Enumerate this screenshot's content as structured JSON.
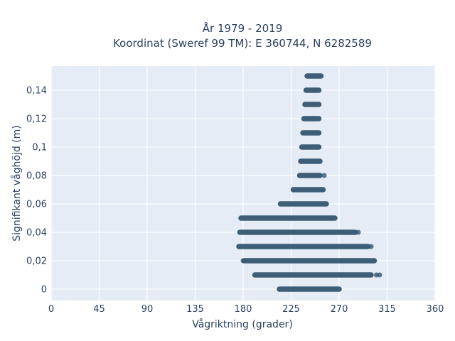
{
  "chart_data": {
    "type": "scatter",
    "title_line1": "År 1979 - 2019",
    "title_line2": "Koordinat (Sweref 99 TM): E 360744, N 6282589",
    "xlabel": "Vågriktning (grader)",
    "ylabel": "Signifikant våghöjd (m)",
    "xlim": [
      0,
      360
    ],
    "ylim": [
      -0.008,
      0.157
    ],
    "xticks": [
      0,
      45,
      90,
      135,
      180,
      225,
      270,
      315,
      360
    ],
    "xtick_labels": [
      "0",
      "45",
      "90",
      "135",
      "180",
      "225",
      "270",
      "315",
      "360"
    ],
    "yticks": [
      0,
      0.02,
      0.04,
      0.06,
      0.08,
      0.1,
      0.12,
      0.14
    ],
    "ytick_labels": [
      "0",
      "0,02",
      "0,04",
      "0,06",
      "0,08",
      "0,1",
      "0,12",
      "0,14"
    ],
    "grid": true,
    "marker_color": "#34566f",
    "plot_background": "#e5ecf6",
    "bands": [
      {
        "y": 0.0,
        "x_min": 214,
        "x_max": 270
      },
      {
        "y": 0.01,
        "x_min": 191,
        "x_max": 300
      },
      {
        "y": 0.02,
        "x_min": 181,
        "x_max": 303
      },
      {
        "y": 0.03,
        "x_min": 176,
        "x_max": 297
      },
      {
        "y": 0.04,
        "x_min": 177,
        "x_max": 285
      },
      {
        "y": 0.05,
        "x_min": 178,
        "x_max": 266
      },
      {
        "y": 0.06,
        "x_min": 215,
        "x_max": 258
      },
      {
        "y": 0.07,
        "x_min": 227,
        "x_max": 255
      },
      {
        "y": 0.08,
        "x_min": 233,
        "x_max": 252
      },
      {
        "y": 0.09,
        "x_min": 234,
        "x_max": 252
      },
      {
        "y": 0.1,
        "x_min": 235,
        "x_max": 251
      },
      {
        "y": 0.11,
        "x_min": 236,
        "x_max": 251
      },
      {
        "y": 0.12,
        "x_min": 237,
        "x_max": 251
      },
      {
        "y": 0.13,
        "x_min": 238,
        "x_max": 251
      },
      {
        "y": 0.14,
        "x_min": 239,
        "x_max": 251
      },
      {
        "y": 0.15,
        "x_min": 240,
        "x_max": 253
      }
    ],
    "outliers": [
      {
        "x": 180,
        "y": 0.02
      },
      {
        "x": 308,
        "y": 0.01
      },
      {
        "x": 305,
        "y": 0.01
      },
      {
        "x": 288,
        "y": 0.04
      },
      {
        "x": 256,
        "y": 0.08
      },
      {
        "x": 300,
        "y": 0.03
      }
    ]
  }
}
